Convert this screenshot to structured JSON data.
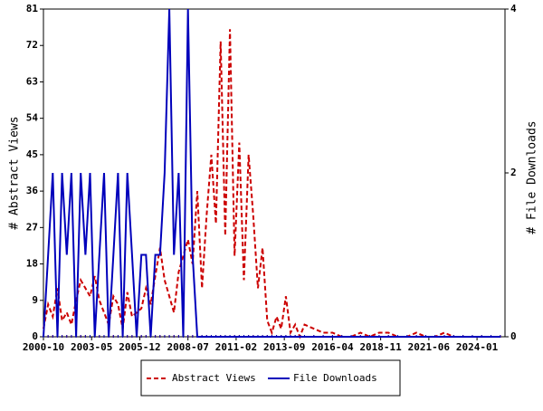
{
  "chart_data": {
    "type": "line",
    "ylabel": "# Abstract Views",
    "y2label": "# File Downloads",
    "x": [
      "2000-10",
      "2001-01",
      "2001-04",
      "2001-07",
      "2001-10",
      "2002-01",
      "2002-04",
      "2002-07",
      "2002-10",
      "2003-01",
      "2003-04",
      "2003-07",
      "2003-10",
      "2004-01",
      "2004-04",
      "2004-07",
      "2004-10",
      "2005-01",
      "2005-04",
      "2005-07",
      "2005-10",
      "2006-01",
      "2006-04",
      "2006-07",
      "2006-10",
      "2007-01",
      "2007-04",
      "2007-07",
      "2007-10",
      "2008-01",
      "2008-04",
      "2008-07",
      "2008-10",
      "2009-01",
      "2009-04",
      "2009-07",
      "2009-10",
      "2010-01",
      "2010-04",
      "2010-07",
      "2010-10",
      "2011-01",
      "2011-04",
      "2011-07",
      "2011-10",
      "2012-01",
      "2012-04",
      "2012-07",
      "2012-10",
      "2013-01",
      "2013-04",
      "2013-07",
      "2013-10",
      "2014-01",
      "2014-04",
      "2014-07",
      "2014-10",
      "2015-04",
      "2015-10",
      "2016-04",
      "2016-10",
      "2017-04",
      "2017-10",
      "2018-04",
      "2018-10",
      "2019-04",
      "2019-10",
      "2020-04",
      "2020-10",
      "2021-04",
      "2021-10",
      "2022-04",
      "2022-10",
      "2023-04",
      "2023-10",
      "2024-04",
      "2024-10",
      "2025-04"
    ],
    "series": [
      {
        "name": "Abstract Views",
        "color": "#cc0000",
        "dashed": true,
        "values": [
          2,
          8,
          5,
          12,
          4,
          6,
          3,
          9,
          14,
          12,
          10,
          15,
          9,
          6,
          3,
          10,
          8,
          2,
          11,
          5,
          6,
          7,
          12,
          8,
          15,
          22,
          14,
          10,
          6,
          16,
          20,
          24,
          18,
          36,
          12,
          30,
          45,
          28,
          73,
          25,
          76,
          20,
          48,
          14,
          45,
          30,
          12,
          22,
          4,
          1,
          5,
          2,
          10,
          1,
          3,
          0,
          3,
          2,
          1,
          1,
          0,
          0,
          1,
          0,
          1,
          1,
          0,
          0,
          1,
          0,
          0,
          1,
          0,
          0,
          0,
          0,
          0,
          0
        ]
      },
      {
        "name": "File Downloads",
        "color": "#0000bb",
        "dashed": false,
        "axis": "y2",
        "values": [
          0,
          1,
          2,
          0,
          2,
          1,
          2,
          0,
          2,
          1,
          2,
          0,
          1,
          2,
          0,
          1,
          2,
          0,
          2,
          1,
          0,
          1,
          1,
          0,
          1,
          1,
          2,
          4,
          1,
          2,
          0,
          4,
          1,
          0,
          0,
          0,
          0,
          0,
          0,
          0,
          0,
          0,
          0,
          0,
          0,
          0,
          0,
          0,
          0,
          0,
          0,
          0,
          0,
          0,
          0,
          0,
          0,
          0,
          0,
          0,
          0,
          0,
          0,
          0,
          0,
          0,
          0,
          0,
          0,
          0,
          0,
          0,
          0,
          0,
          0,
          0,
          0,
          0
        ]
      }
    ],
    "xlim": [
      "2000-10",
      "2025-07"
    ],
    "xticks": [
      "2000-10",
      "2003-05",
      "2005-12",
      "2008-07",
      "2011-02",
      "2013-09",
      "2016-04",
      "2018-11",
      "2021-06",
      "2024-01"
    ],
    "ylim": [
      0,
      81
    ],
    "yticks": [
      0,
      9,
      18,
      27,
      36,
      45,
      54,
      63,
      72,
      81
    ],
    "y2lim": [
      0,
      4
    ],
    "y2ticks": [
      0,
      2,
      4
    ]
  }
}
